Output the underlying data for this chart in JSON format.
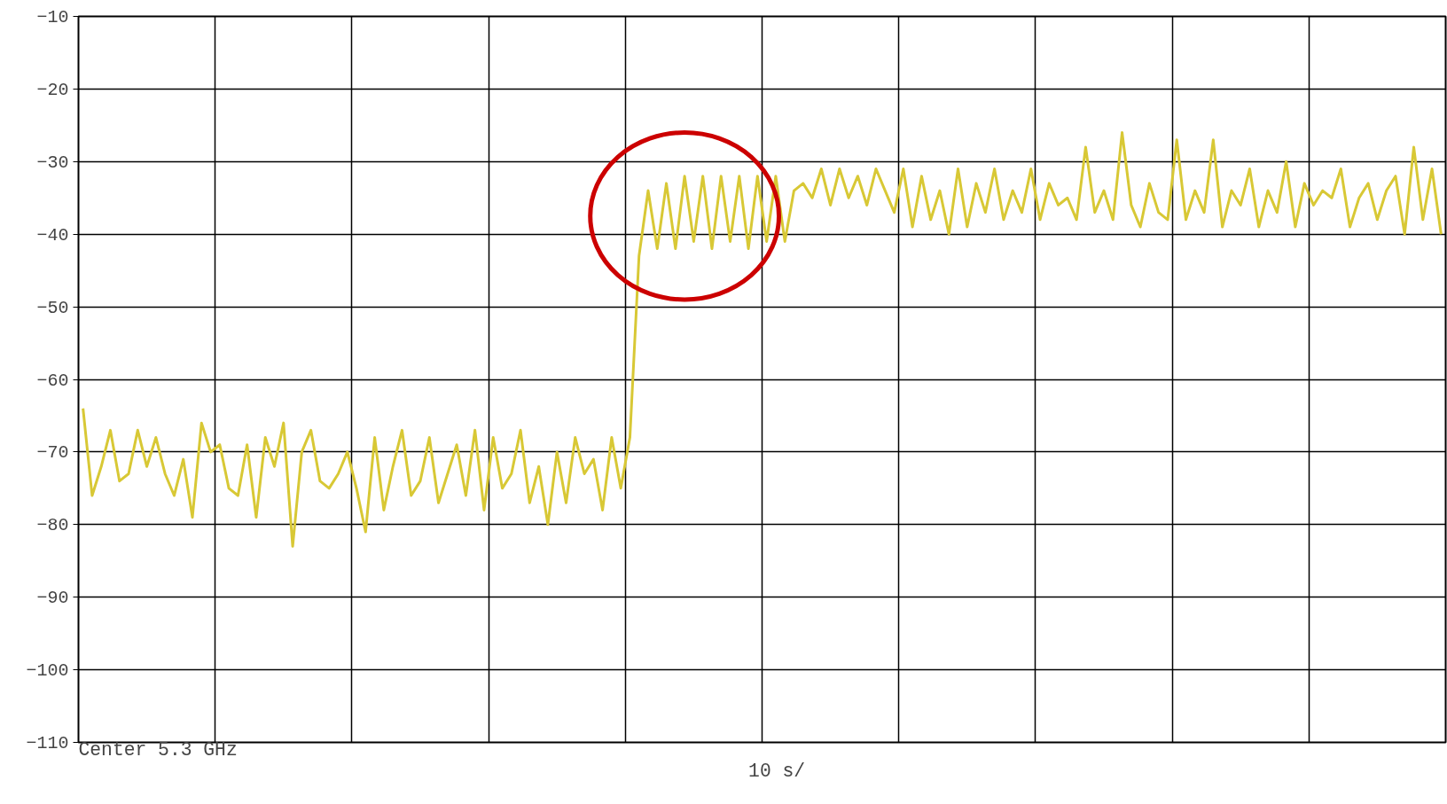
{
  "chart_data": {
    "type": "line",
    "color": "#d8c835",
    "categories": [
      null,
      null,
      null,
      null,
      null,
      null,
      null,
      null,
      null,
      null,
      null,
      null,
      null,
      null,
      null,
      null,
      null,
      null,
      null,
      null,
      null,
      null,
      null,
      null,
      null,
      null,
      null,
      null,
      null,
      null,
      null,
      null,
      null,
      null,
      null,
      null,
      null,
      null,
      null,
      null,
      null,
      null,
      null,
      null,
      null,
      null,
      null,
      null,
      null,
      null,
      null,
      null,
      null,
      null,
      null,
      null,
      null,
      null,
      null,
      null,
      null,
      null,
      null,
      null,
      null,
      null,
      null,
      null,
      null,
      null,
      null,
      null,
      null,
      null,
      null,
      null,
      null,
      null,
      null,
      null,
      null,
      null,
      null,
      null,
      null,
      null,
      null,
      null,
      null,
      null,
      null,
      null,
      null,
      null,
      null,
      null,
      null,
      null,
      null,
      null,
      null,
      null,
      null,
      null,
      null,
      null,
      null,
      null,
      null,
      null,
      null,
      null,
      null,
      null,
      null,
      null,
      null,
      null,
      null,
      null,
      null,
      null,
      null,
      null,
      null,
      null,
      null,
      null,
      null,
      null,
      null,
      null,
      null,
      null,
      null,
      null,
      null,
      null,
      null,
      null,
      null,
      null,
      null,
      null,
      null,
      null,
      null,
      null,
      null,
      null
    ],
    "values": [
      -64,
      -76,
      -72,
      -67,
      -74,
      -73,
      -67,
      -72,
      -68,
      -73,
      -76,
      -71,
      -79,
      -66,
      -70,
      -69,
      -75,
      -76,
      -69,
      -79,
      -68,
      -72,
      -66,
      -83,
      -70,
      -67,
      -74,
      -75,
      -73,
      -70,
      -75,
      -81,
      -68,
      -78,
      -72,
      -67,
      -76,
      -74,
      -68,
      -77,
      -73,
      -69,
      -76,
      -67,
      -78,
      -68,
      -75,
      -73,
      -67,
      -77,
      -72,
      -80,
      -70,
      -77,
      -68,
      -73,
      -71,
      -78,
      -68,
      -75,
      -68,
      -43,
      -34,
      -42,
      -33,
      -42,
      -32,
      -41,
      -32,
      -42,
      -32,
      -41,
      -32,
      -42,
      -32,
      -41,
      -32,
      -41,
      -34,
      -33,
      -35,
      -31,
      -36,
      -31,
      -35,
      -32,
      -36,
      -31,
      -34,
      -37,
      -31,
      -39,
      -32,
      -38,
      -34,
      -40,
      -31,
      -39,
      -33,
      -37,
      -31,
      -38,
      -34,
      -37,
      -31,
      -38,
      -33,
      -36,
      -35,
      -38,
      -28,
      -37,
      -34,
      -38,
      -26,
      -36,
      -39,
      -33,
      -37,
      -38,
      -27,
      -38,
      -34,
      -37,
      -27,
      -39,
      -34,
      -36,
      -31,
      -39,
      -34,
      -37,
      -30,
      -39,
      -33,
      -36,
      -34,
      -35,
      -31,
      -39,
      -35,
      -33,
      -38,
      -34,
      -32,
      -40,
      -28,
      -38,
      -31,
      -40
    ],
    "ylim": [
      -110,
      -10
    ],
    "yticks": [
      -10,
      -20,
      -30,
      -40,
      -50,
      -60,
      -70,
      -80,
      -90,
      -100,
      -110
    ],
    "grid": true,
    "tick_labels": "y",
    "annotations": [
      "Center 5.3 GHz",
      "10 s/"
    ]
  }
}
